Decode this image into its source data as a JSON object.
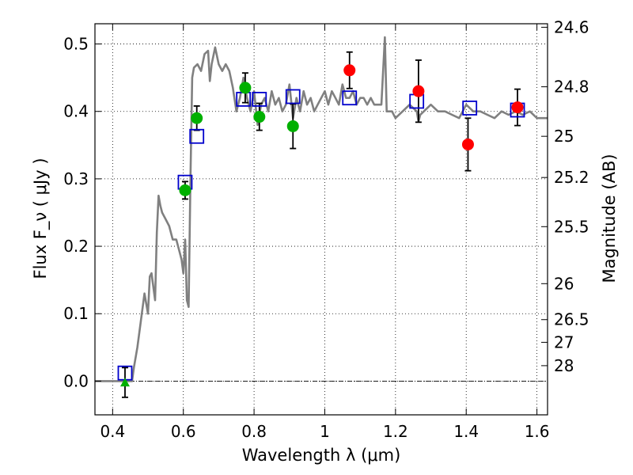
{
  "chart_data": {
    "type": "scatter",
    "xlabel": "Wavelength  λ (μm)",
    "ylabel": "Flux  F_ν  ( μJy )",
    "y2label": "Magnitude (AB)",
    "xlim": [
      0.35,
      1.63
    ],
    "ylim": [
      -0.05,
      0.53
    ],
    "grid": true,
    "x_ticks": [
      {
        "value": 0.4,
        "label": "0.4"
      },
      {
        "value": 0.6,
        "label": "0.6"
      },
      {
        "value": 0.8,
        "label": "0.8"
      },
      {
        "value": 1.0,
        "label": "1"
      },
      {
        "value": 1.2,
        "label": "1.2"
      },
      {
        "value": 1.4,
        "label": "1.4"
      },
      {
        "value": 1.6,
        "label": "1.6"
      }
    ],
    "y_ticks": [
      {
        "value": 0.0,
        "label": "0.0"
      },
      {
        "value": 0.1,
        "label": "0.1"
      },
      {
        "value": 0.2,
        "label": "0.2"
      },
      {
        "value": 0.3,
        "label": "0.3"
      },
      {
        "value": 0.4,
        "label": "0.4"
      },
      {
        "value": 0.5,
        "label": "0.5"
      }
    ],
    "y2_ticks": [
      {
        "value": 24.6,
        "label": "24.6"
      },
      {
        "value": 24.8,
        "label": "24.8"
      },
      {
        "value": 25.0,
        "label": "25"
      },
      {
        "value": 25.2,
        "label": "25.2"
      },
      {
        "value": 25.5,
        "label": "25.5"
      },
      {
        "value": 26.0,
        "label": "26"
      },
      {
        "value": 26.5,
        "label": "26.5"
      },
      {
        "value": 27.0,
        "label": "27"
      },
      {
        "value": 28.0,
        "label": "28"
      }
    ],
    "zero_line": 0.0,
    "colors": {
      "model": "#808080",
      "model_points": "#0000cc",
      "green_points": "#00b000",
      "red_points": "#ff0000",
      "errorbar": "#000000",
      "upper_limit": "#00b000"
    },
    "model_spectrum": {
      "x": [
        0.35,
        0.44,
        0.455,
        0.46,
        0.47,
        0.48,
        0.49,
        0.5,
        0.505,
        0.51,
        0.52,
        0.525,
        0.53,
        0.535,
        0.54,
        0.55,
        0.56,
        0.57,
        0.58,
        0.59,
        0.595,
        0.6,
        0.605,
        0.61,
        0.615,
        0.62,
        0.625,
        0.63,
        0.64,
        0.65,
        0.66,
        0.67,
        0.675,
        0.68,
        0.69,
        0.7,
        0.71,
        0.72,
        0.73,
        0.74,
        0.75,
        0.76,
        0.77,
        0.78,
        0.79,
        0.8,
        0.81,
        0.82,
        0.83,
        0.84,
        0.85,
        0.86,
        0.87,
        0.88,
        0.89,
        0.9,
        0.91,
        0.92,
        0.93,
        0.94,
        0.95,
        0.96,
        0.97,
        0.98,
        0.99,
        1.0,
        1.01,
        1.02,
        1.03,
        1.04,
        1.05,
        1.06,
        1.07,
        1.08,
        1.09,
        1.1,
        1.11,
        1.12,
        1.13,
        1.14,
        1.15,
        1.16,
        1.17,
        1.175,
        1.18,
        1.19,
        1.2,
        1.22,
        1.24,
        1.26,
        1.265,
        1.27,
        1.28,
        1.3,
        1.32,
        1.34,
        1.36,
        1.38,
        1.4,
        1.42,
        1.44,
        1.46,
        1.48,
        1.5,
        1.52,
        1.54,
        1.56,
        1.58,
        1.6,
        1.63
      ],
      "y": [
        0.0,
        0.0,
        0.0,
        0.02,
        0.05,
        0.09,
        0.13,
        0.1,
        0.155,
        0.16,
        0.12,
        0.22,
        0.275,
        0.26,
        0.25,
        0.24,
        0.23,
        0.21,
        0.21,
        0.19,
        0.18,
        0.16,
        0.21,
        0.12,
        0.11,
        0.3,
        0.45,
        0.465,
        0.47,
        0.46,
        0.485,
        0.49,
        0.445,
        0.47,
        0.495,
        0.47,
        0.46,
        0.47,
        0.46,
        0.435,
        0.4,
        0.42,
        0.45,
        0.42,
        0.4,
        0.43,
        0.38,
        0.41,
        0.42,
        0.4,
        0.43,
        0.41,
        0.42,
        0.4,
        0.41,
        0.44,
        0.39,
        0.42,
        0.4,
        0.43,
        0.41,
        0.42,
        0.4,
        0.41,
        0.42,
        0.43,
        0.41,
        0.43,
        0.42,
        0.41,
        0.44,
        0.42,
        0.42,
        0.43,
        0.41,
        0.42,
        0.42,
        0.41,
        0.42,
        0.41,
        0.41,
        0.41,
        0.51,
        0.4,
        0.4,
        0.4,
        0.39,
        0.4,
        0.41,
        0.4,
        0.385,
        0.395,
        0.4,
        0.41,
        0.4,
        0.4,
        0.395,
        0.39,
        0.41,
        0.4,
        0.4,
        0.395,
        0.39,
        0.4,
        0.395,
        0.4,
        0.395,
        0.4,
        0.39,
        0.39
      ]
    },
    "model_points": [
      {
        "x": 0.435,
        "y": 0.012
      },
      {
        "x": 0.605,
        "y": 0.295
      },
      {
        "x": 0.638,
        "y": 0.363
      },
      {
        "x": 0.77,
        "y": 0.418
      },
      {
        "x": 0.815,
        "y": 0.418
      },
      {
        "x": 0.91,
        "y": 0.422
      },
      {
        "x": 1.07,
        "y": 0.42
      },
      {
        "x": 1.26,
        "y": 0.415
      },
      {
        "x": 1.41,
        "y": 0.405
      },
      {
        "x": 1.545,
        "y": 0.402
      }
    ],
    "green_points": [
      {
        "x": 0.605,
        "y": 0.283,
        "err": 0.013
      },
      {
        "x": 0.638,
        "y": 0.39,
        "err": 0.018
      },
      {
        "x": 0.775,
        "y": 0.435,
        "err": 0.022
      },
      {
        "x": 0.815,
        "y": 0.392,
        "err": 0.02
      },
      {
        "x": 0.91,
        "y": 0.378,
        "err": 0.033
      }
    ],
    "red_points": [
      {
        "x": 1.07,
        "y": 0.461,
        "err": 0.027
      },
      {
        "x": 1.265,
        "y": 0.43,
        "err": 0.046
      },
      {
        "x": 1.405,
        "y": 0.351,
        "err": 0.039
      },
      {
        "x": 1.545,
        "y": 0.406,
        "err": 0.027
      }
    ],
    "upper_limits": [
      {
        "x": 0.435,
        "y": -0.002,
        "err": 0.022
      }
    ]
  }
}
